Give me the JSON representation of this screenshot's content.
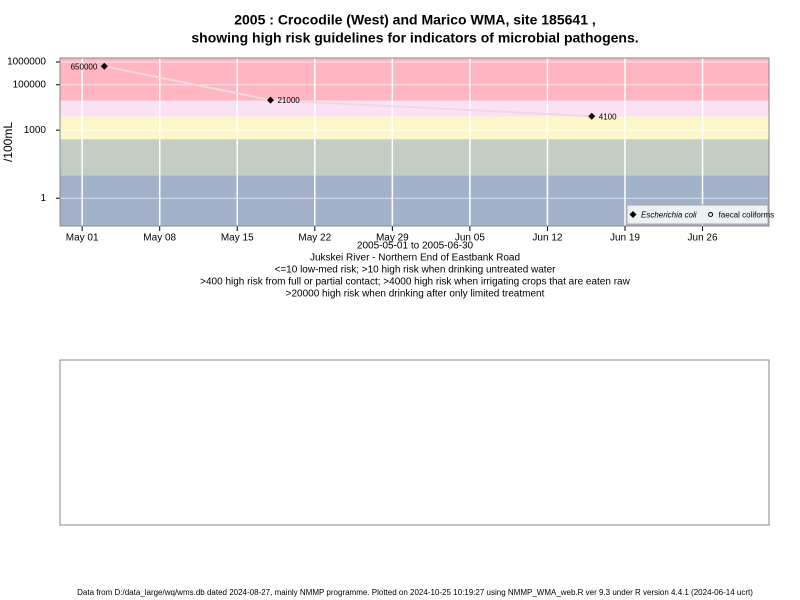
{
  "chart_data": {
    "type": "line",
    "title": "2005 : Crocodile (West) and Marico WMA, site 185641 ,",
    "subtitle": "showing high risk guidelines for indicators of microbial pathogens.",
    "y_label": "/100mL",
    "x_label_lines": [
      "2005-05-01 to 2005-06-30",
      "Jukskei River - Northern End of Eastbank Road"
    ],
    "notes": [
      "<=10 low-med risk; >10 high risk when drinking untreated water",
      ">400 high risk from full or partial contact; >4000 high risk when irrigating crops that are eaten raw",
      ">20000 high risk when drinking after only limited treatment"
    ],
    "footer": "Data from D:/data_large/wq/wms.db dated 2024-08-27, mainly NMMP programme. Plotted on 2024-10-25 10:19:27 using NMMP_WMA_web.R ver 9.3 under R version 4.4.1 (2024-06-14 ucrt)",
    "x": [
      "2005-05-03",
      "2005-05-18",
      "2005-06-16"
    ],
    "series": [
      {
        "name": "Escherichia coli",
        "color": "#000000",
        "line_color": "#f2d7e0",
        "marker": "diamond",
        "values": [
          650000,
          21000,
          4100
        ]
      },
      {
        "name": "faecal coliforms",
        "color": "#000000",
        "marker": "circle",
        "values": [
          null,
          null,
          null
        ]
      }
    ],
    "log_y": true,
    "ylim": [
      0.06,
      1500000
    ],
    "yticks": [
      1,
      1000,
      100000,
      1000000
    ],
    "xlim": [
      "2005-04-29",
      "2005-07-02"
    ],
    "xticks": [
      {
        "value": "2005-05-01",
        "label": "May 01"
      },
      {
        "value": "2005-05-08",
        "label": "May 08"
      },
      {
        "value": "2005-05-15",
        "label": "May 15"
      },
      {
        "value": "2005-05-22",
        "label": "May 22"
      },
      {
        "value": "2005-05-29",
        "label": "May 29"
      },
      {
        "value": "2005-06-05",
        "label": "Jun 05"
      },
      {
        "value": "2005-06-12",
        "label": "Jun 12"
      },
      {
        "value": "2005-06-19",
        "label": "Jun 19"
      },
      {
        "value": "2005-06-26",
        "label": "Jun 26"
      }
    ],
    "risk_thresholds": [
      10,
      400,
      4000,
      20000
    ],
    "band_colors": [
      "#a3b2cb",
      "#c4cdc3",
      "#fcf7c9",
      "#fbe1f5",
      "#ffb6c2"
    ],
    "grid": true,
    "legend_position": "bottom-right"
  }
}
